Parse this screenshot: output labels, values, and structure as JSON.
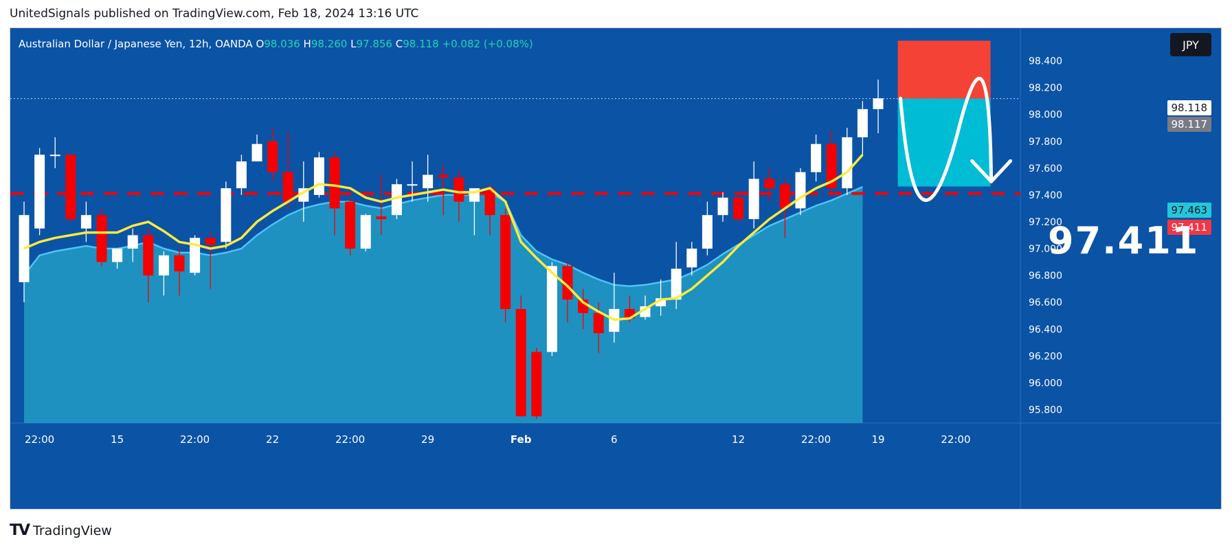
{
  "header": {
    "publisher_line": "UnitedSignals published on TradingView.com, Feb 18, 2024 13:16 UTC"
  },
  "legend": {
    "symbol": "Australian Dollar / Japanese Yen, 12h, OANDA",
    "open_key": "O",
    "open": "98.036",
    "high_key": "H",
    "high": "98.260",
    "low_key": "L",
    "low": "97.856",
    "close_key": "C",
    "close": "98.118",
    "change": "+0.082 (+0.08%)"
  },
  "currency_button": "JPY",
  "price_tags": {
    "last": "98.118",
    "prev": "98.117",
    "ema": "97.463",
    "target": "97.411"
  },
  "target_label": "97.411",
  "footer": {
    "brand": "TradingView",
    "logo_mark": "TV"
  },
  "colors": {
    "background": "#0b53a5",
    "up": "#ffffff",
    "down": "#f40000",
    "ema_fast": "#ffeb3b",
    "area": "#26a5c9",
    "stop_zone": "#f44336",
    "target_zone": "#00bcd4"
  },
  "chart_data": {
    "type": "candlestick",
    "timeframe": "12h",
    "y_axis": {
      "min": 95.7,
      "max": 98.5,
      "ticks": [
        "95.800",
        "96.000",
        "96.200",
        "96.400",
        "96.600",
        "96.800",
        "97.000",
        "97.200",
        "97.400",
        "97.600",
        "97.800",
        "98.000",
        "98.200",
        "98.400"
      ]
    },
    "x_axis_labels": [
      {
        "label": "22:00",
        "bar": 1
      },
      {
        "label": "15",
        "bar": 6
      },
      {
        "label": "22:00",
        "bar": 11
      },
      {
        "label": "22",
        "bar": 16
      },
      {
        "label": "22:00",
        "bar": 21
      },
      {
        "label": "29",
        "bar": 26
      },
      {
        "label": "Feb",
        "bar": 32
      },
      {
        "label": "6",
        "bar": 38
      },
      {
        "label": "12",
        "bar": 46
      },
      {
        "label": "22:00",
        "bar": 51
      },
      {
        "label": "19",
        "bar": 55
      },
      {
        "label": "22:00",
        "bar": 60
      }
    ],
    "candles": [
      {
        "o": 96.75,
        "h": 97.35,
        "l": 96.6,
        "c": 97.25
      },
      {
        "o": 97.15,
        "h": 97.75,
        "l": 97.1,
        "c": 97.7
      },
      {
        "o": 97.7,
        "h": 97.83,
        "l": 97.6,
        "c": 97.7
      },
      {
        "o": 97.7,
        "h": 97.7,
        "l": 97.2,
        "c": 97.22
      },
      {
        "o": 97.15,
        "h": 97.35,
        "l": 97.05,
        "c": 97.25
      },
      {
        "o": 97.25,
        "h": 97.3,
        "l": 96.87,
        "c": 96.9
      },
      {
        "o": 96.9,
        "h": 97.0,
        "l": 96.85,
        "c": 97.0
      },
      {
        "o": 97.0,
        "h": 97.15,
        "l": 96.9,
        "c": 97.1
      },
      {
        "o": 97.1,
        "h": 97.15,
        "l": 96.6,
        "c": 96.8
      },
      {
        "o": 96.8,
        "h": 96.98,
        "l": 96.65,
        "c": 96.95
      },
      {
        "o": 96.95,
        "h": 97.0,
        "l": 96.65,
        "c": 96.83
      },
      {
        "o": 96.82,
        "h": 97.1,
        "l": 96.8,
        "c": 97.08
      },
      {
        "o": 97.08,
        "h": 97.12,
        "l": 96.7,
        "c": 97.03
      },
      {
        "o": 97.05,
        "h": 97.5,
        "l": 97.0,
        "c": 97.45
      },
      {
        "o": 97.45,
        "h": 97.7,
        "l": 97.4,
        "c": 97.65
      },
      {
        "o": 97.65,
        "h": 97.85,
        "l": 97.65,
        "c": 97.78
      },
      {
        "o": 97.8,
        "h": 97.9,
        "l": 97.5,
        "c": 97.57
      },
      {
        "o": 97.57,
        "h": 97.87,
        "l": 97.3,
        "c": 97.35
      },
      {
        "o": 97.35,
        "h": 97.65,
        "l": 97.2,
        "c": 97.45
      },
      {
        "o": 97.4,
        "h": 97.72,
        "l": 97.38,
        "c": 97.68
      },
      {
        "o": 97.68,
        "h": 97.72,
        "l": 97.1,
        "c": 97.3
      },
      {
        "o": 97.35,
        "h": 97.38,
        "l": 96.95,
        "c": 97.0
      },
      {
        "o": 97.0,
        "h": 97.26,
        "l": 96.98,
        "c": 97.25
      },
      {
        "o": 97.24,
        "h": 97.55,
        "l": 97.1,
        "c": 97.22
      },
      {
        "o": 97.25,
        "h": 97.52,
        "l": 97.22,
        "c": 97.48
      },
      {
        "o": 97.48,
        "h": 97.65,
        "l": 97.35,
        "c": 97.48
      },
      {
        "o": 97.45,
        "h": 97.7,
        "l": 97.35,
        "c": 97.55
      },
      {
        "o": 97.55,
        "h": 97.63,
        "l": 97.25,
        "c": 97.53
      },
      {
        "o": 97.53,
        "h": 97.58,
        "l": 97.2,
        "c": 97.35
      },
      {
        "o": 97.35,
        "h": 97.45,
        "l": 97.1,
        "c": 97.45
      },
      {
        "o": 97.45,
        "h": 97.48,
        "l": 97.1,
        "c": 97.25
      },
      {
        "o": 97.25,
        "h": 97.3,
        "l": 96.45,
        "c": 96.55
      },
      {
        "o": 96.55,
        "h": 96.65,
        "l": 95.75,
        "c": 95.75
      },
      {
        "o": 96.23,
        "h": 96.26,
        "l": 95.73,
        "c": 95.75
      },
      {
        "o": 96.23,
        "h": 96.9,
        "l": 96.2,
        "c": 96.87
      },
      {
        "o": 96.87,
        "h": 96.9,
        "l": 96.45,
        "c": 96.62
      },
      {
        "o": 96.62,
        "h": 96.7,
        "l": 96.4,
        "c": 96.52
      },
      {
        "o": 96.52,
        "h": 96.6,
        "l": 96.22,
        "c": 96.37
      },
      {
        "o": 96.38,
        "h": 96.82,
        "l": 96.3,
        "c": 96.55
      },
      {
        "o": 96.55,
        "h": 96.65,
        "l": 96.45,
        "c": 96.48
      },
      {
        "o": 96.49,
        "h": 96.65,
        "l": 96.47,
        "c": 96.57
      },
      {
        "o": 96.57,
        "h": 96.77,
        "l": 96.5,
        "c": 96.63
      },
      {
        "o": 96.62,
        "h": 97.05,
        "l": 96.55,
        "c": 96.85
      },
      {
        "o": 96.86,
        "h": 97.05,
        "l": 96.8,
        "c": 97.0
      },
      {
        "o": 97.0,
        "h": 97.35,
        "l": 96.95,
        "c": 97.25
      },
      {
        "o": 97.25,
        "h": 97.42,
        "l": 97.2,
        "c": 97.38
      },
      {
        "o": 97.38,
        "h": 97.4,
        "l": 97.2,
        "c": 97.22
      },
      {
        "o": 97.22,
        "h": 97.65,
        "l": 97.15,
        "c": 97.52
      },
      {
        "o": 97.52,
        "h": 97.6,
        "l": 97.35,
        "c": 97.45
      },
      {
        "o": 97.48,
        "h": 97.52,
        "l": 97.08,
        "c": 97.3
      },
      {
        "o": 97.3,
        "h": 97.6,
        "l": 97.25,
        "c": 97.57
      },
      {
        "o": 97.57,
        "h": 97.85,
        "l": 97.5,
        "c": 97.78
      },
      {
        "o": 97.78,
        "h": 97.88,
        "l": 97.4,
        "c": 97.45
      },
      {
        "o": 97.45,
        "h": 97.9,
        "l": 97.4,
        "c": 97.83
      },
      {
        "o": 97.83,
        "h": 98.1,
        "l": 97.7,
        "c": 98.04
      },
      {
        "o": 98.04,
        "h": 98.26,
        "l": 97.86,
        "c": 98.12
      }
    ],
    "ema_fast": [
      97.0,
      97.05,
      97.08,
      97.1,
      97.12,
      97.12,
      97.12,
      97.17,
      97.2,
      97.13,
      97.05,
      97.03,
      97.0,
      97.02,
      97.08,
      97.2,
      97.28,
      97.35,
      97.42,
      97.48,
      97.47,
      97.45,
      97.38,
      97.35,
      97.38,
      97.4,
      97.42,
      97.44,
      97.42,
      97.42,
      97.45,
      97.35,
      97.05,
      96.93,
      96.82,
      96.72,
      96.6,
      96.53,
      96.47,
      96.48,
      96.55,
      96.62,
      96.63,
      96.7,
      96.8,
      96.9,
      97.02,
      97.12,
      97.22,
      97.3,
      97.38,
      97.45,
      97.5,
      97.57,
      97.7
    ],
    "ema_slow_area": [
      96.8,
      96.95,
      96.98,
      97.0,
      97.02,
      97.0,
      97.0,
      97.02,
      97.05,
      97.0,
      96.97,
      96.97,
      96.95,
      96.97,
      97.0,
      97.1,
      97.18,
      97.25,
      97.3,
      97.33,
      97.35,
      97.35,
      97.32,
      97.3,
      97.33,
      97.36,
      97.38,
      97.4,
      97.4,
      97.4,
      97.42,
      97.35,
      97.1,
      96.98,
      96.92,
      96.88,
      96.82,
      96.77,
      96.73,
      96.72,
      96.73,
      96.75,
      96.77,
      96.82,
      96.88,
      96.96,
      97.03,
      97.1,
      97.17,
      97.22,
      97.27,
      97.32,
      97.36,
      97.41,
      97.46
    ],
    "horizontal_line": {
      "price": 97.411,
      "style": "dashed",
      "color": "#f40000"
    },
    "short_position": {
      "entry": 98.118,
      "stop": 98.55,
      "target": 97.463
    },
    "annotation": "97.411"
  }
}
